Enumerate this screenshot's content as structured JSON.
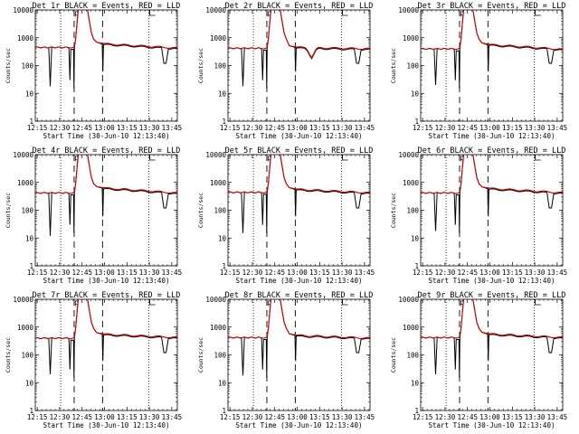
{
  "chart_data": {
    "type": "line",
    "layout": "3x3 grid of small multiples",
    "xlabel": "Start Time (30-Jun-10 12:13:40)",
    "ylabel": "Counts/sec",
    "yscale": "log",
    "ylim": [
      1,
      10000
    ],
    "ytick_labels": [
      "1",
      "10",
      "100",
      "1000",
      "10000"
    ],
    "xlim_minutes": [
      0,
      95
    ],
    "xtick_labels": [
      "12:15",
      "12:30",
      "12:45",
      "13:00",
      "13:15",
      "13:30",
      "13:45"
    ],
    "series_names": [
      "Events",
      "LLD"
    ],
    "colors": {
      "events": "#000000",
      "lld": "#cc0000",
      "axes": "#000000"
    },
    "vlines": {
      "dotted_min": [
        17,
        76
      ],
      "dashed_min": [
        26,
        45
      ]
    },
    "annotation_mark": {
      "x_min": 27.5,
      "text": "p"
    },
    "annotation_L_x_min": 76,
    "panels": [
      {
        "title": "Det 1r BLACK = Events, RED = LLD",
        "lld_peak": 14000,
        "pre_level": 450,
        "post_level": 600,
        "end_level": 420,
        "dip_event": 18,
        "has_dip": false
      },
      {
        "title": "Det 2r BLACK = Events, RED = LLD",
        "lld_peak": 14000,
        "pre_level": 420,
        "post_level": 450,
        "end_level": 400,
        "dip_event": 18,
        "has_dip": true
      },
      {
        "title": "Det 3r BLACK = Events, RED = LLD",
        "lld_peak": 14000,
        "pre_level": 400,
        "post_level": 560,
        "end_level": 380,
        "dip_event": 20,
        "has_dip": false
      },
      {
        "title": "Det 4r BLACK = Events, RED = LLD",
        "lld_peak": 14000,
        "pre_level": 420,
        "post_level": 620,
        "end_level": 410,
        "dip_event": 12,
        "has_dip": false
      },
      {
        "title": "Det 5r BLACK = Events, RED = LLD",
        "lld_peak": 14000,
        "pre_level": 440,
        "post_level": 560,
        "end_level": 420,
        "dip_event": 15,
        "has_dip": false
      },
      {
        "title": "Det 6r BLACK = Events, RED = LLD",
        "lld_peak": 14000,
        "pre_level": 420,
        "post_level": 600,
        "end_level": 420,
        "dip_event": 18,
        "has_dip": false
      },
      {
        "title": "Det 7r BLACK = Events, RED = LLD",
        "lld_peak": 14000,
        "pre_level": 400,
        "post_level": 550,
        "end_level": 420,
        "dip_event": 20,
        "has_dip": false
      },
      {
        "title": "Det 8r BLACK = Events, RED = LLD",
        "lld_peak": 14000,
        "pre_level": 420,
        "post_level": 500,
        "end_level": 400,
        "dip_event": 18,
        "has_dip": false
      },
      {
        "title": "Det 9r BLACK = Events, RED = LLD",
        "lld_peak": 14000,
        "pre_level": 420,
        "post_level": 560,
        "end_level": 420,
        "dip_event": 20,
        "has_dip": false
      }
    ]
  }
}
